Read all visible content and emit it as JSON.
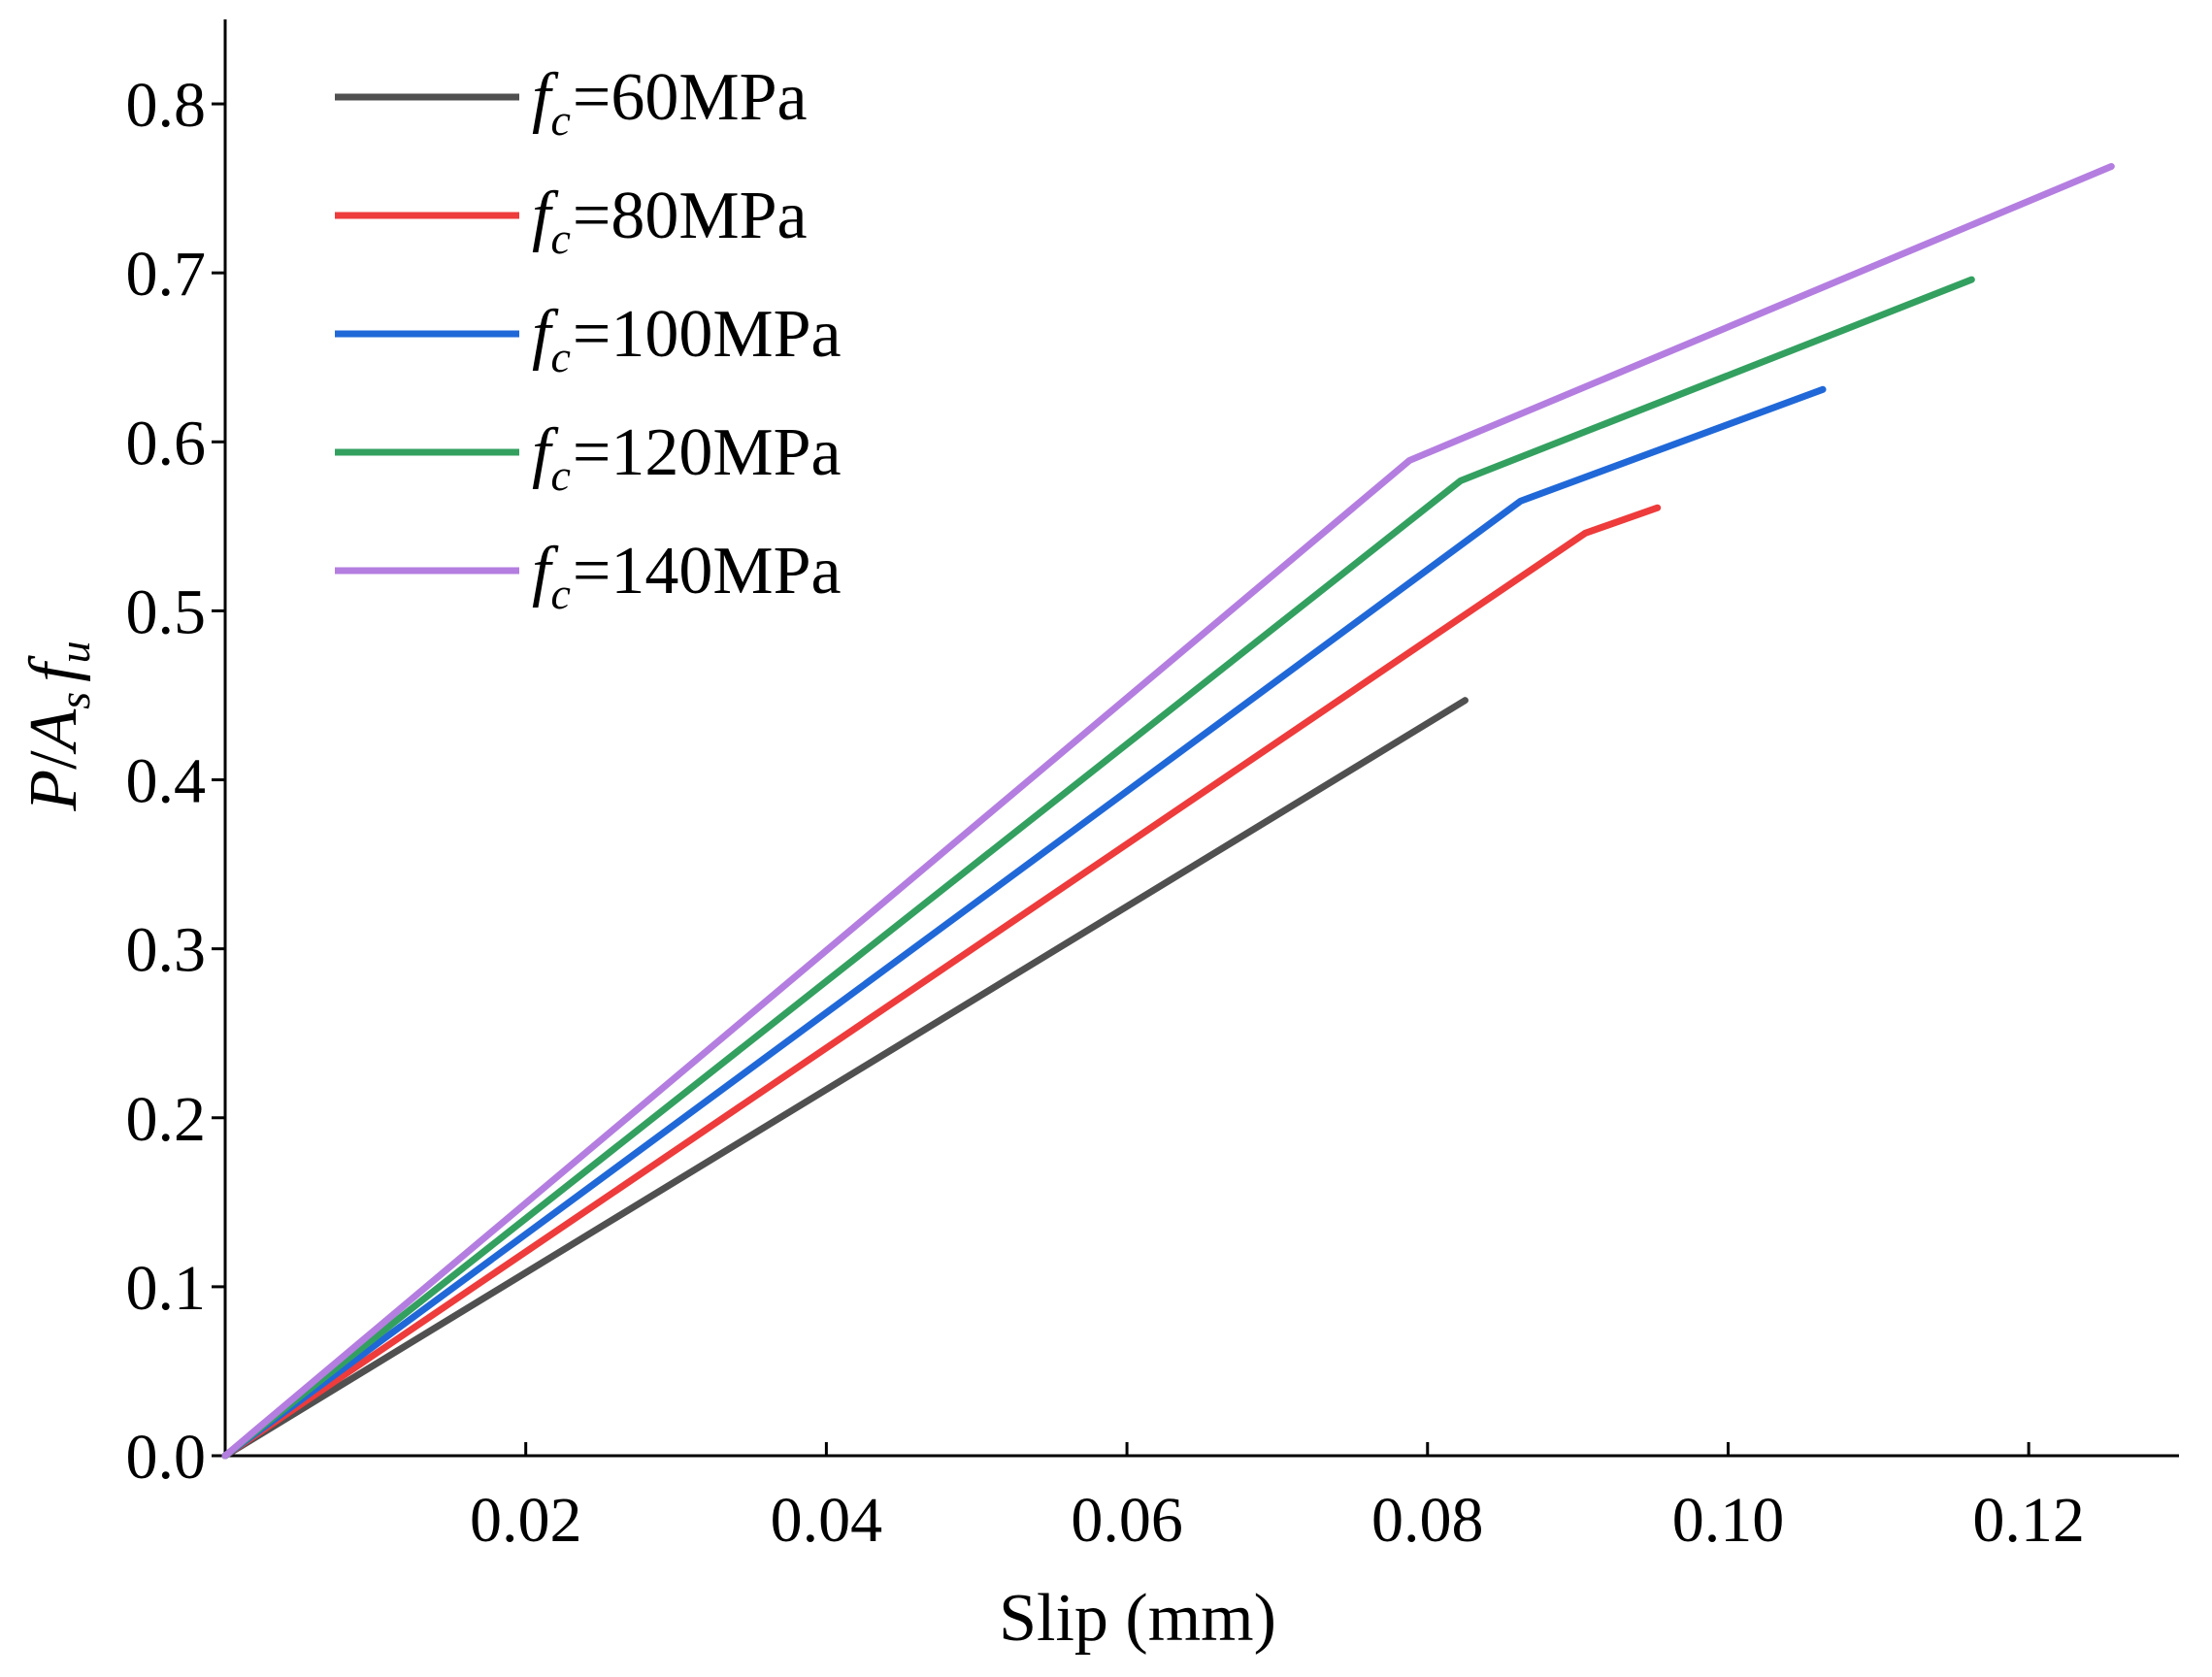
{
  "chart_data": {
    "type": "line",
    "xlabel": "Slip (mm)",
    "ylabel": {
      "P": "P",
      "slash": "/",
      "A": "A",
      "s": "s",
      "f": "f",
      "u": "u"
    },
    "xlim": [
      0,
      0.13
    ],
    "ylim": [
      0,
      0.85
    ],
    "xticks": [
      0.02,
      0.04,
      0.06,
      0.08,
      0.1,
      0.12
    ],
    "xtick_labels": [
      "0.02",
      "0.04",
      "0.06",
      "0.08",
      "0.10",
      "0.12"
    ],
    "yticks": [
      0.0,
      0.1,
      0.2,
      0.3,
      0.4,
      0.5,
      0.6,
      0.7,
      0.8
    ],
    "ytick_labels": [
      "0.0",
      "0.1",
      "0.2",
      "0.3",
      "0.4",
      "0.5",
      "0.6",
      "0.7",
      "0.8"
    ],
    "grid": false,
    "legend_position": "top-left",
    "series": [
      {
        "name": "fc=60MPa",
        "label_f": "f",
        "label_c": "c",
        "label_rest": "=60MPa",
        "color": "#505050",
        "x": [
          0,
          0.0825
        ],
        "y": [
          0,
          0.447
        ]
      },
      {
        "name": "fc=80MPa",
        "label_f": "f",
        "label_c": "c",
        "label_rest": "=80MPa",
        "color": "#ee3b3b",
        "x": [
          0,
          0.0905,
          0.0953
        ],
        "y": [
          0,
          0.546,
          0.561
        ]
      },
      {
        "name": "fc=100MPa",
        "label_f": "f",
        "label_c": "c",
        "label_rest": "=100MPa",
        "color": "#2068d8",
        "x": [
          0,
          0.0862,
          0.1063
        ],
        "y": [
          0,
          0.565,
          0.631
        ]
      },
      {
        "name": "fc=120MPa",
        "label_f": "f",
        "label_c": "c",
        "label_rest": "=120MPa",
        "color": "#33a060",
        "x": [
          0,
          0.0822,
          0.1162
        ],
        "y": [
          0,
          0.577,
          0.696
        ]
      },
      {
        "name": "fc=140MPa",
        "label_f": "f",
        "label_c": "c",
        "label_rest": "=140MPa",
        "color": "#b47ee0",
        "x": [
          0,
          0.0788,
          0.1255
        ],
        "y": [
          0,
          0.589,
          0.763
        ]
      }
    ]
  }
}
